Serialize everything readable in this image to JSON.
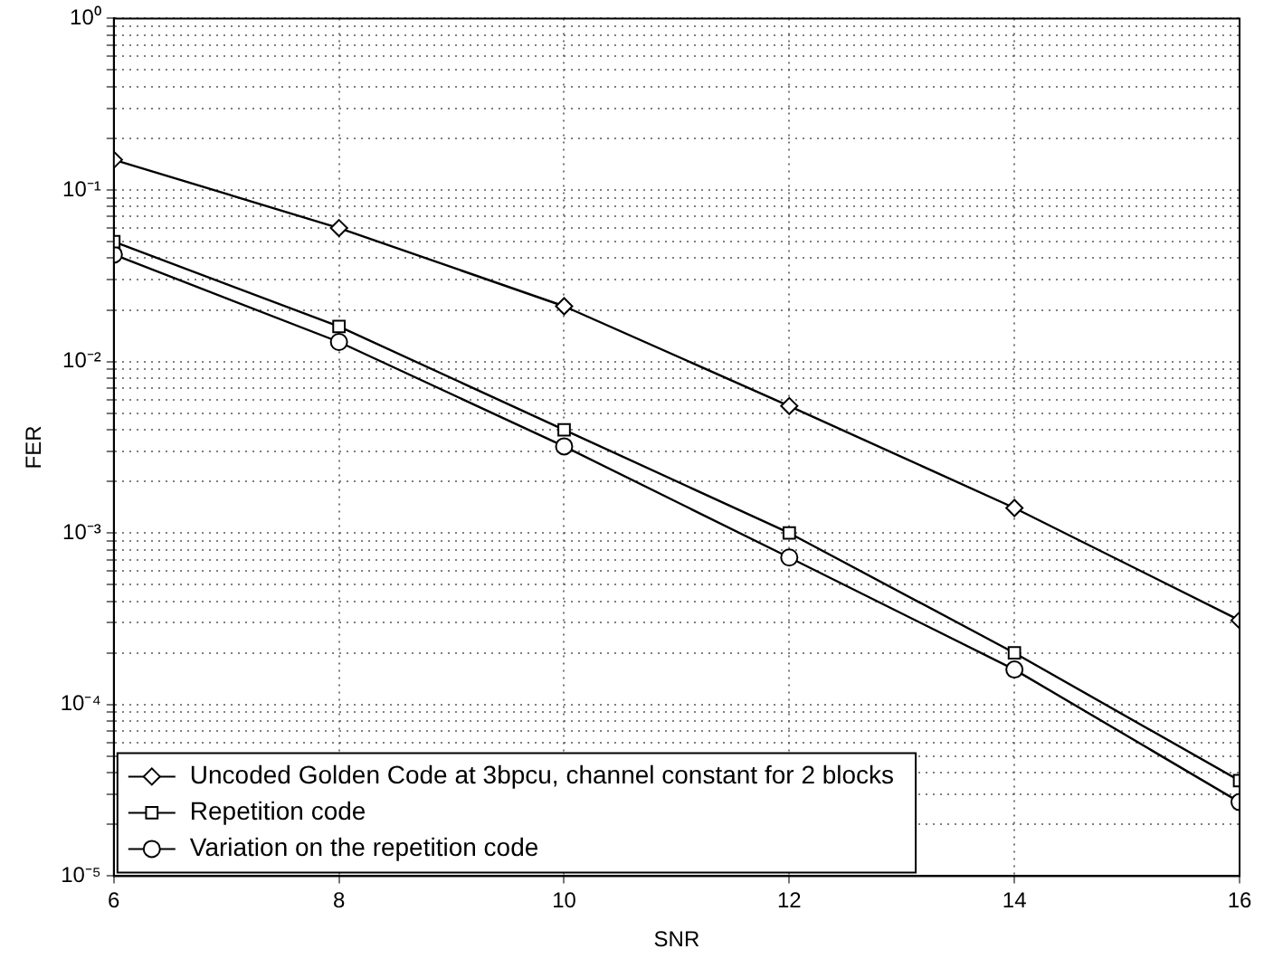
{
  "chart_data": {
    "type": "line",
    "xlabel": "SNR",
    "ylabel": "FER",
    "log": "y",
    "grid": true,
    "legend": "bottom left",
    "line_style": "solid",
    "x": [
      6,
      8,
      10,
      12,
      14,
      16
    ],
    "xlim": [
      6,
      16
    ],
    "xticks": [
      6,
      8,
      10,
      12,
      14,
      16
    ],
    "ylim": [
      1e-05,
      1
    ],
    "yticks": [
      {
        "value": 1e-05,
        "label": "10⁻⁵"
      },
      {
        "value": 2e-05,
        "label": null
      },
      {
        "value": 3e-05,
        "label": null
      },
      {
        "value": 4e-05,
        "label": null
      },
      {
        "value": 5e-05,
        "label": null
      },
      {
        "value": 6e-05,
        "label": null
      },
      {
        "value": 7e-05,
        "label": null
      },
      {
        "value": 8e-05,
        "label": null
      },
      {
        "value": 9e-05,
        "label": null
      },
      {
        "value": 0.0001,
        "label": "10⁻⁴"
      },
      {
        "value": 0.0002,
        "label": null
      },
      {
        "value": 0.0003,
        "label": null
      },
      {
        "value": 0.0004,
        "label": null
      },
      {
        "value": 0.0005,
        "label": null
      },
      {
        "value": 0.0006,
        "label": null
      },
      {
        "value": 0.0007,
        "label": null
      },
      {
        "value": 0.0008,
        "label": null
      },
      {
        "value": 0.0009,
        "label": null
      },
      {
        "value": 0.001,
        "label": "10⁻³"
      },
      {
        "value": 0.002,
        "label": null
      },
      {
        "value": 0.003,
        "label": null
      },
      {
        "value": 0.004,
        "label": null
      },
      {
        "value": 0.005,
        "label": null
      },
      {
        "value": 0.006,
        "label": null
      },
      {
        "value": 0.007,
        "label": null
      },
      {
        "value": 0.008,
        "label": null
      },
      {
        "value": 0.009,
        "label": null
      },
      {
        "value": 0.01,
        "label": "10⁻²"
      },
      {
        "value": 0.02,
        "label": null
      },
      {
        "value": 0.03,
        "label": null
      },
      {
        "value": 0.04,
        "label": null
      },
      {
        "value": 0.05,
        "label": null
      },
      {
        "value": 0.06,
        "label": null
      },
      {
        "value": 0.07,
        "label": null
      },
      {
        "value": 0.08,
        "label": null
      },
      {
        "value": 0.09,
        "label": null
      },
      {
        "value": 0.1,
        "label": "10⁻¹"
      },
      {
        "value": 0.2,
        "label": null
      },
      {
        "value": 0.3,
        "label": null
      },
      {
        "value": 0.4,
        "label": null
      },
      {
        "value": 0.5,
        "label": null
      },
      {
        "value": 0.6,
        "label": null
      },
      {
        "value": 0.7,
        "label": null
      },
      {
        "value": 0.8,
        "label": null
      },
      {
        "value": 0.9,
        "label": null
      },
      {
        "value": 1,
        "label": "10⁰"
      }
    ],
    "series": [
      {
        "name": "Uncoded Golden Code at 3bpcu, channel constant for 2 blocks",
        "color": "#000000",
        "marker": "diamond",
        "values": [
          0.15,
          0.06,
          0.021,
          0.0055,
          0.0014,
          0.00031
        ]
      },
      {
        "name": "Repetition code",
        "color": "#000000",
        "marker": "square",
        "values": [
          0.05,
          0.016,
          0.004,
          0.001,
          0.0002,
          3.6e-05
        ]
      },
      {
        "name": "Variation on the repetition code",
        "color": "#000000",
        "marker": "circle",
        "values": [
          0.042,
          0.013,
          0.0032,
          0.00072,
          0.00016,
          2.7e-05
        ]
      }
    ]
  }
}
